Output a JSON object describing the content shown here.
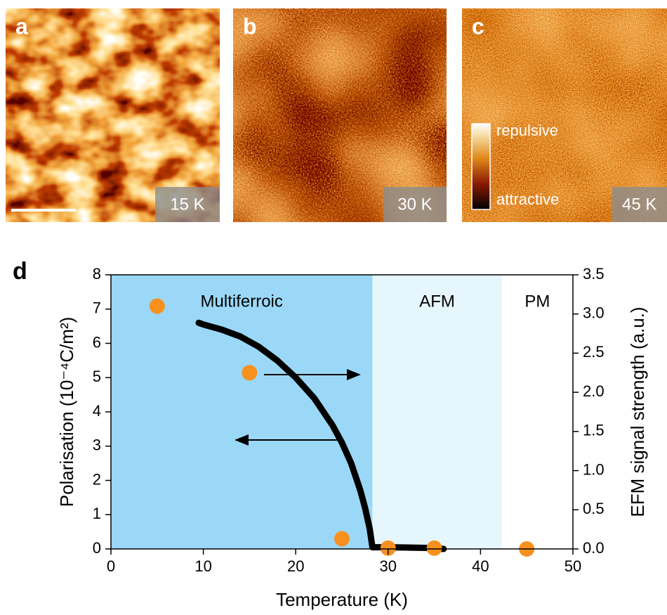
{
  "panels": [
    {
      "label": "a",
      "temperature": "15 K"
    },
    {
      "label": "b",
      "temperature": "30 K"
    },
    {
      "label": "c",
      "temperature": "45 K"
    }
  ],
  "colorbar": {
    "top": "repulsive",
    "bottom": "attractive"
  },
  "chart_data": {
    "type": "line",
    "panel_label": "d",
    "x_label": "Temperature (K)",
    "y_label": "Polarisation (10⁻⁴C/m²)",
    "y2_label": "EFM signal strength (a.u.)",
    "xlim": [
      0,
      50
    ],
    "xticks": [
      0,
      10,
      20,
      30,
      40,
      50
    ],
    "ylim": [
      0,
      8
    ],
    "yticks": [
      0,
      1,
      2,
      3,
      4,
      5,
      6,
      7,
      8
    ],
    "y2lim": [
      0,
      3.5
    ],
    "y2ticks": [
      {
        "value": 0,
        "label": "0.0"
      },
      0.5,
      {
        "value": 1,
        "label": "1.0"
      },
      1.5,
      {
        "value": 2,
        "label": "2.0"
      },
      2.5,
      {
        "value": 3,
        "label": "3.0"
      },
      3.5
    ],
    "regions": [
      {
        "name": "Multiferroic",
        "from": 0,
        "to": 28.3,
        "color": "#9bd8f7"
      },
      {
        "name": "AFM",
        "from": 28.3,
        "to": 42.3,
        "color": "#e6f6fd"
      },
      {
        "name": "PM",
        "from": 42.3,
        "to": 50,
        "color": "#ffffff"
      }
    ],
    "series": [
      {
        "type": "line",
        "color": "#000000",
        "x": [
          9.5,
          10,
          12,
          14,
          16,
          18,
          20,
          22,
          24,
          25,
          26,
          27,
          27.5,
          28,
          28.3,
          30,
          32,
          34,
          36
        ],
        "values": [
          6.6,
          6.55,
          6.4,
          6.2,
          5.9,
          5.5,
          5.0,
          4.4,
          3.6,
          3.1,
          2.5,
          1.7,
          1.2,
          0.6,
          0.05,
          0.05,
          0.04,
          0.03,
          0.0
        ]
      },
      {
        "type": "scatter",
        "axis": "y2",
        "color": "#f7901e",
        "x": [
          5,
          15,
          25,
          30,
          35,
          45
        ],
        "values": [
          3.1,
          2.25,
          0.13,
          0.01,
          0.01,
          0.0
        ]
      }
    ]
  }
}
